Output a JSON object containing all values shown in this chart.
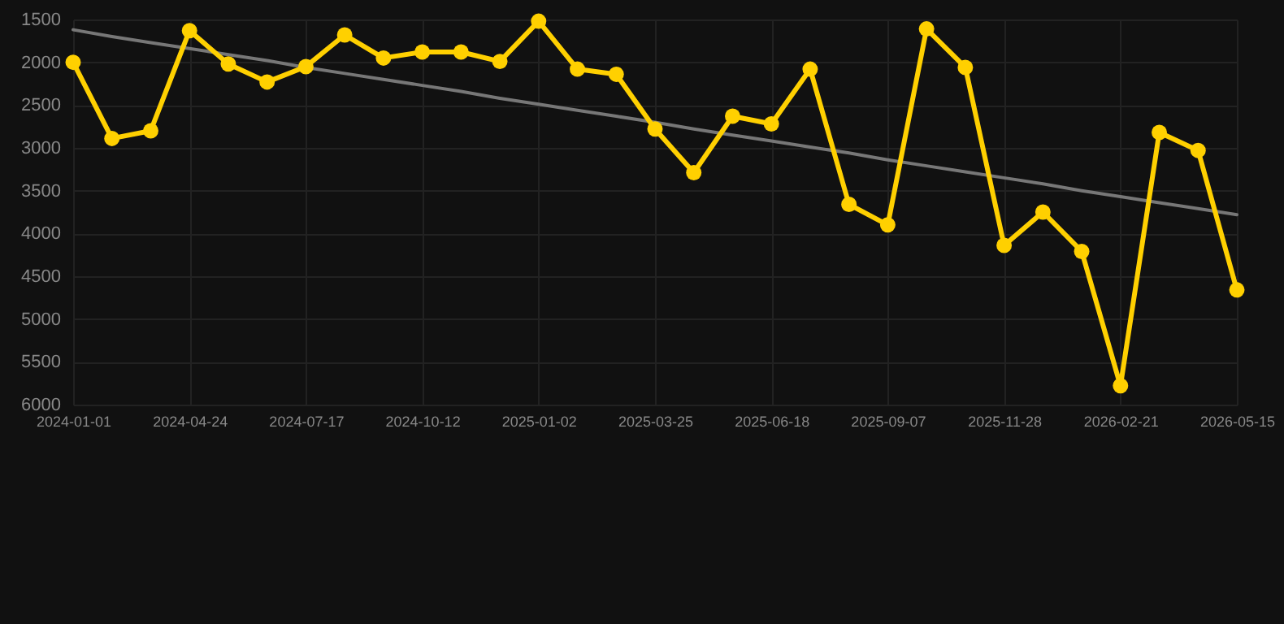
{
  "chart_data": {
    "type": "line",
    "categories": [
      "2024-01-01",
      null,
      null,
      "2024-04-24",
      null,
      null,
      "2024-07-17",
      null,
      null,
      "2024-10-12",
      null,
      null,
      "2025-01-02",
      null,
      null,
      "2025-03-25",
      null,
      null,
      "2025-06-18",
      null,
      null,
      "2025-09-07",
      null,
      null,
      "2025-11-28",
      null,
      null,
      "2026-02-21",
      null,
      null,
      "2026-05-15"
    ],
    "series": [
      {
        "color": "#ffd000",
        "marker": "circle",
        "values": [
          2000,
          2890,
          2800,
          1630,
          2020,
          2230,
          2050,
          1680,
          1950,
          1880,
          1880,
          1990,
          1520,
          2080,
          2140,
          2780,
          3290,
          2630,
          2720,
          2080,
          3660,
          3900,
          1610,
          2060,
          4140,
          3750,
          4210,
          5780,
          2820,
          3030,
          4660
        ]
      },
      {
        "color": "#777777",
        "marker": "none",
        "values": [
          1620,
          1700,
          1770,
          1840,
          1910,
          1980,
          2060,
          2130,
          2200,
          2270,
          2340,
          2420,
          2490,
          2560,
          2630,
          2700,
          2780,
          2850,
          2920,
          2990,
          3060,
          3140,
          3210,
          3280,
          3350,
          3420,
          3500,
          3570,
          3640,
          3710,
          3780
        ]
      }
    ],
    "ylim": [
      6000,
      1500
    ],
    "yticks": [
      1500,
      2000,
      2500,
      3000,
      3500,
      4000,
      4500,
      5000,
      5500,
      6000
    ],
    "grid": true
  }
}
